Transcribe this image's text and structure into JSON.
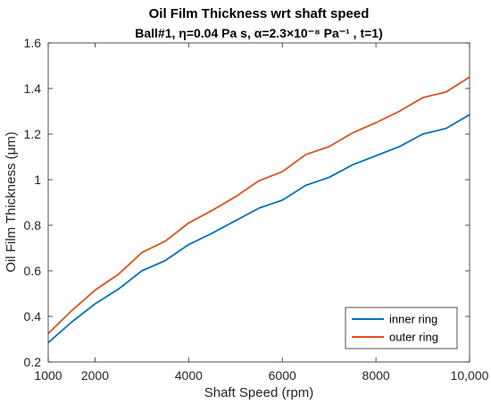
{
  "chart_data": {
    "type": "line",
    "title": "Oil Film Thickness wrt shaft speed",
    "subtitle": "Ball#1, η=0.04 Pa s, α=2.3×10⁻⁸ Pa⁻¹ , t=1)",
    "xlabel": "Shaft Speed (rpm)",
    "ylabel": "Oil Film Thickness (μm)",
    "xlim": [
      1000,
      10000
    ],
    "ylim": [
      0.2,
      1.6
    ],
    "x_ticks": [
      1000,
      2000,
      4000,
      6000,
      8000,
      10000
    ],
    "x_tick_labels": [
      "1000",
      "2000",
      "4000",
      "6000",
      "8000",
      "10,000"
    ],
    "y_ticks": [
      0.2,
      0.4,
      0.6,
      0.8,
      1.0,
      1.2,
      1.4,
      1.6
    ],
    "y_tick_labels": [
      "0.2",
      "0.4",
      "0.6",
      "0.8",
      "1",
      "1.2",
      "1.4",
      "1.6"
    ],
    "grid": false,
    "legend_position": "bottom-right",
    "x": [
      1000,
      1500,
      2000,
      2500,
      3000,
      3500,
      4000,
      4500,
      5000,
      5500,
      6000,
      6500,
      7000,
      7500,
      8000,
      8500,
      9000,
      9500,
      10000
    ],
    "series": [
      {
        "name": "inner ring",
        "color": "#0072BD",
        "values": [
          0.285,
          0.375,
          0.455,
          0.52,
          0.6,
          0.645,
          0.715,
          0.765,
          0.82,
          0.875,
          0.91,
          0.975,
          1.01,
          1.065,
          1.105,
          1.145,
          1.2,
          1.225,
          1.285
        ]
      },
      {
        "name": "outer ring",
        "color": "#D95319",
        "values": [
          0.325,
          0.425,
          0.515,
          0.585,
          0.68,
          0.73,
          0.81,
          0.865,
          0.925,
          0.995,
          1.035,
          1.11,
          1.145,
          1.205,
          1.25,
          1.3,
          1.36,
          1.385,
          1.45
        ]
      }
    ]
  }
}
